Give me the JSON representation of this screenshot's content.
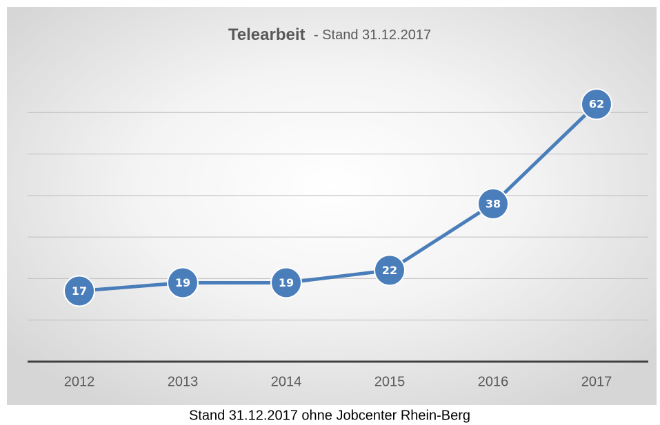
{
  "chart_data": {
    "type": "line",
    "title": "Telearbeit",
    "subtitle": "- Stand 31.12.2017",
    "caption": "Stand 31.12.2017 ohne Jobcenter Rhein-Berg",
    "categories": [
      "2012",
      "2013",
      "2014",
      "2015",
      "2016",
      "2017"
    ],
    "series": [
      {
        "name": "Telearbeit",
        "color": "#4a7ebb",
        "values": [
          17,
          19,
          19,
          22,
          38,
          62
        ]
      }
    ],
    "ylim": [
      0,
      70
    ],
    "yticks": [
      0,
      10,
      20,
      30,
      40,
      50,
      60
    ],
    "grid": true
  }
}
